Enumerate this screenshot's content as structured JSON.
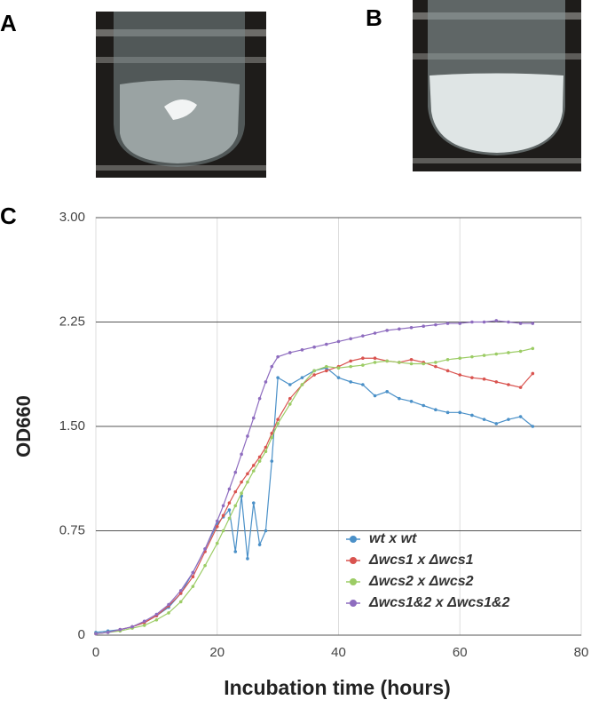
{
  "panels": [
    "A",
    "B",
    "C"
  ],
  "chart_data": {
    "type": "line",
    "x_label": "Incubation time (hours)",
    "y_label": "OD660",
    "x": [
      0,
      2,
      4,
      6,
      8,
      10,
      12,
      14,
      16,
      18,
      20,
      21,
      22,
      23,
      24,
      25,
      26,
      27,
      28,
      29,
      30,
      32,
      34,
      36,
      38,
      40,
      42,
      44,
      46,
      48,
      50,
      52,
      54,
      56,
      58,
      60,
      62,
      64,
      66,
      68,
      70,
      72
    ],
    "xlim": [
      0,
      80
    ],
    "xticks": [
      0,
      20,
      40,
      60,
      80
    ],
    "ylim": [
      0,
      3
    ],
    "yticks": [
      0,
      0.75,
      {
        "value": 1.5,
        "label": "1.50"
      },
      2.25,
      {
        "value": 3,
        "label": "3.00"
      }
    ],
    "grid": true,
    "legend": "lower right",
    "series": [
      {
        "name": "wt x wt",
        "color": "#4a90c8",
        "values": [
          0.02,
          0.03,
          0.04,
          0.06,
          0.09,
          0.14,
          0.2,
          0.3,
          0.45,
          0.62,
          0.8,
          0.85,
          0.9,
          0.6,
          1.0,
          0.55,
          0.95,
          0.65,
          0.75,
          1.25,
          1.85,
          1.8,
          1.85,
          1.9,
          1.92,
          1.85,
          1.82,
          1.8,
          1.72,
          1.75,
          1.7,
          1.68,
          1.65,
          1.62,
          1.6,
          1.6,
          1.58,
          1.55,
          1.52,
          1.55,
          1.57,
          1.5
        ]
      },
      {
        "name": "Δwcs1 x Δwcs1",
        "color": "#d9534f",
        "values": [
          0.01,
          0.02,
          0.04,
          0.06,
          0.09,
          0.14,
          0.21,
          0.3,
          0.42,
          0.6,
          0.78,
          0.86,
          0.95,
          1.03,
          1.1,
          1.16,
          1.22,
          1.28,
          1.35,
          1.45,
          1.55,
          1.7,
          1.8,
          1.87,
          1.9,
          1.93,
          1.97,
          1.99,
          1.99,
          1.97,
          1.96,
          1.98,
          1.96,
          1.93,
          1.9,
          1.87,
          1.85,
          1.84,
          1.82,
          1.8,
          1.78,
          1.88
        ]
      },
      {
        "name": "Δwcs2 x Δwcs2",
        "color": "#9ccc65",
        "values": [
          0.01,
          0.02,
          0.03,
          0.05,
          0.07,
          0.11,
          0.16,
          0.24,
          0.35,
          0.5,
          0.66,
          0.75,
          0.84,
          0.93,
          1.02,
          1.1,
          1.18,
          1.25,
          1.32,
          1.42,
          1.52,
          1.66,
          1.8,
          1.9,
          1.93,
          1.92,
          1.93,
          1.94,
          1.96,
          1.97,
          1.96,
          1.95,
          1.95,
          1.96,
          1.98,
          1.99,
          2.0,
          2.01,
          2.02,
          2.03,
          2.04,
          2.06
        ]
      },
      {
        "name": "Δwcs1&2 x Δwcs1&2",
        "color": "#8e6cbf",
        "values": [
          0.01,
          0.02,
          0.04,
          0.06,
          0.1,
          0.15,
          0.22,
          0.32,
          0.45,
          0.62,
          0.82,
          0.93,
          1.05,
          1.17,
          1.3,
          1.43,
          1.56,
          1.7,
          1.82,
          1.93,
          2.0,
          2.03,
          2.05,
          2.07,
          2.09,
          2.11,
          2.13,
          2.15,
          2.17,
          2.19,
          2.2,
          2.21,
          2.22,
          2.23,
          2.24,
          2.24,
          2.25,
          2.25,
          2.26,
          2.25,
          2.24,
          2.24
        ]
      }
    ]
  }
}
